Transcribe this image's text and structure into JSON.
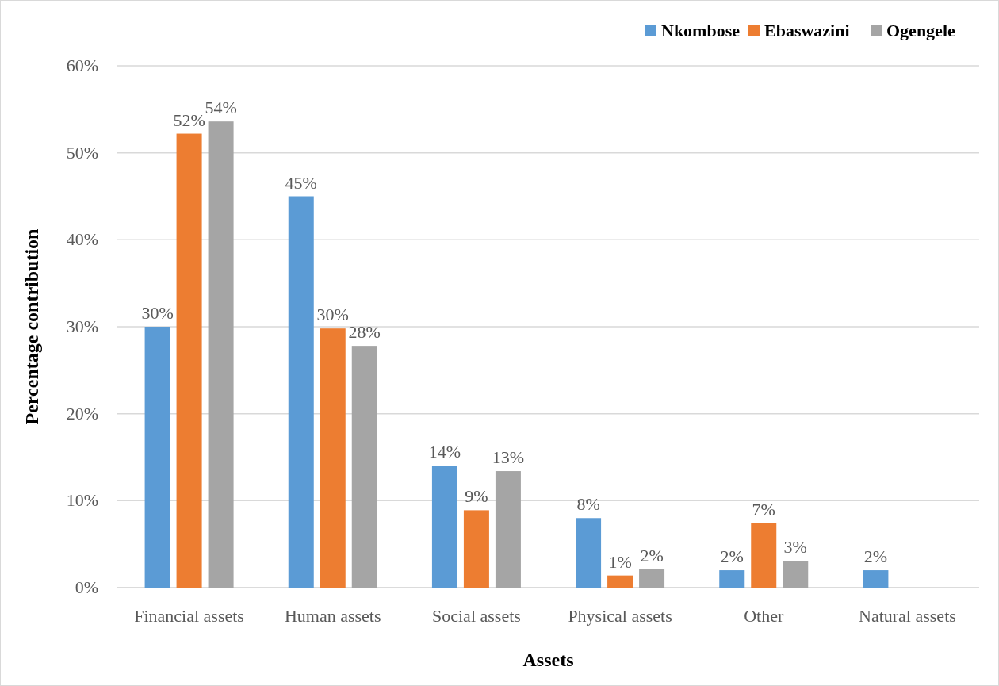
{
  "chart_data": {
    "type": "bar",
    "xlabel": "Assets",
    "ylabel": "Percentage contribution",
    "categories": [
      "Financial assets",
      "Human assets",
      "Social assets",
      "Physical assets",
      "Other",
      "Natural assets"
    ],
    "series": [
      {
        "name": "Nkombose",
        "color": "#5b9bd5",
        "values": [
          30,
          45,
          14,
          8,
          2,
          2
        ],
        "value_labels": [
          "30%",
          "45%",
          "14%",
          "8%",
          "2%",
          "2%"
        ]
      },
      {
        "name": "Ebaswazini",
        "color": "#ed7d31",
        "values": [
          52.2,
          29.8,
          8.9,
          1.4,
          7.4,
          null
        ],
        "value_labels": [
          "52%",
          "30%",
          "9%",
          "1%",
          "7%",
          null
        ]
      },
      {
        "name": "Ogengele",
        "color": "#a5a5a5",
        "values": [
          53.6,
          27.8,
          13.4,
          2.1,
          3.1,
          null
        ],
        "value_labels": [
          "54%",
          "28%",
          "13%",
          "2%",
          "3%",
          null
        ]
      }
    ],
    "ylim": [
      0,
      60
    ],
    "yticks": [
      {
        "value": 0,
        "label": "0%"
      },
      {
        "value": 10,
        "label": "10%"
      },
      {
        "value": 20,
        "label": "20%"
      },
      {
        "value": 30,
        "label": "30%"
      },
      {
        "value": 40,
        "label": "40%"
      },
      {
        "value": 50,
        "label": "50%"
      },
      {
        "value": 60,
        "label": "60%"
      }
    ],
    "grid": "y",
    "legend": "top right"
  }
}
